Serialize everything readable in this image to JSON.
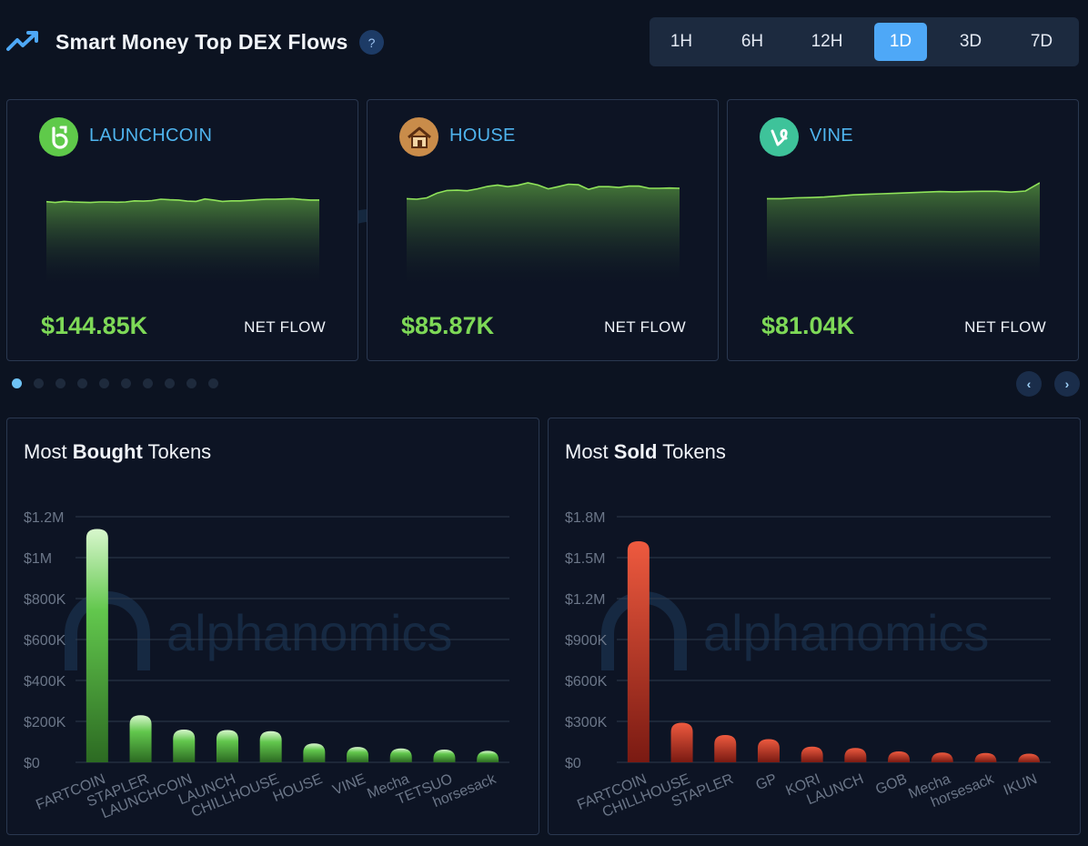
{
  "header": {
    "title": "Smart Money Top DEX Flows",
    "help_label": "?",
    "timeframes": [
      "1H",
      "6H",
      "12H",
      "1D",
      "3D",
      "7D"
    ],
    "active_timeframe": "1D"
  },
  "watermark_text": "alphanomics",
  "cards": [
    {
      "name": "LAUNCHCOIN",
      "amount": "$144.85K",
      "flow_label": "NET FLOW",
      "icon": "launchcoin-icon",
      "spark": [
        0.69,
        0.72,
        0.68,
        0.7,
        0.71,
        0.72,
        0.7,
        0.7,
        0.71,
        0.7,
        0.66,
        0.67,
        0.65,
        0.6,
        0.62,
        0.63,
        0.67,
        0.68,
        0.59,
        0.63,
        0.68,
        0.66,
        0.66,
        0.64,
        0.62,
        0.6,
        0.6,
        0.59,
        0.58,
        0.61,
        0.63,
        0.63
      ]
    },
    {
      "name": "HOUSE",
      "amount": "$85.87K",
      "flow_label": "NET FLOW",
      "icon": "house-icon",
      "spark": [
        0.58,
        0.6,
        0.55,
        0.38,
        0.28,
        0.27,
        0.29,
        0.22,
        0.13,
        0.08,
        0.14,
        0.09,
        0.0,
        0.08,
        0.22,
        0.14,
        0.05,
        0.07,
        0.24,
        0.14,
        0.14,
        0.17,
        0.12,
        0.12,
        0.2,
        0.2,
        0.19,
        0.2
      ]
    },
    {
      "name": "VINE",
      "amount": "$81.04K",
      "flow_label": "NET FLOW",
      "icon": "vine-icon",
      "spark": [
        0.58,
        0.58,
        0.55,
        0.54,
        0.52,
        0.48,
        0.44,
        0.42,
        0.4,
        0.38,
        0.36,
        0.34,
        0.32,
        0.33,
        0.32,
        0.31,
        0.31,
        0.34,
        0.3,
        0.0
      ]
    }
  ],
  "carousel": {
    "dot_count": 10,
    "active_index": 0,
    "prev_label": "‹",
    "next_label": "›"
  },
  "panels": [
    {
      "title_prefix": "Most ",
      "title_bold": "Bought",
      "title_suffix": " Tokens"
    },
    {
      "title_prefix": "Most ",
      "title_bold": "Sold",
      "title_suffix": " Tokens"
    }
  ],
  "chart_data": [
    {
      "type": "bar",
      "title": "Most Bought Tokens",
      "categories": [
        "FARTCOIN",
        "STAPLER",
        "LAUNCHCOIN",
        "LAUNCH",
        "CHILLHOUSE",
        "HOUSE",
        "VINE",
        "Mecha",
        "TETSUO",
        "horsesack"
      ],
      "values": [
        1140000,
        230000,
        160000,
        158000,
        152000,
        92000,
        75000,
        68000,
        62000,
        56000
      ],
      "ylim": [
        0,
        1200000
      ],
      "yticks": [
        "$0",
        "$200K",
        "$400K",
        "$600K",
        "$800K",
        "$1M",
        "$1.2M"
      ],
      "color": "#5cc949"
    },
    {
      "type": "bar",
      "title": "Most Sold Tokens",
      "categories": [
        "FARTCOIN",
        "CHILLHOUSE",
        "STAPLER",
        "GP",
        "KORI",
        "LAUNCH",
        "GOB",
        "Mecha",
        "horsesack",
        "IKUN"
      ],
      "values": [
        1620000,
        290000,
        200000,
        170000,
        115000,
        105000,
        80000,
        72000,
        68000,
        63000
      ],
      "ylim": [
        0,
        1800000
      ],
      "yticks": [
        "$0",
        "$300K",
        "$600K",
        "$900K",
        "$1.2M",
        "$1.5M",
        "$1.8M"
      ],
      "color": "#e0402f"
    }
  ]
}
